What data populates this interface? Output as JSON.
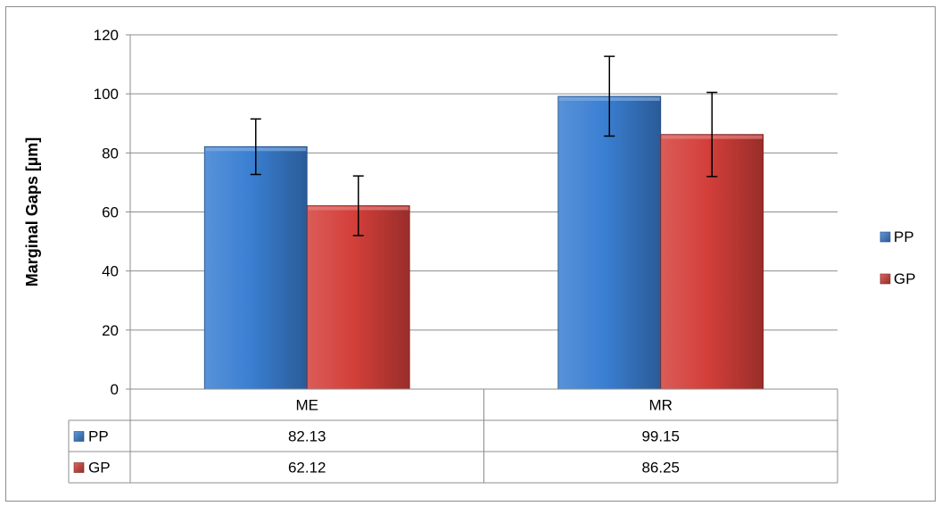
{
  "chart_data": {
    "type": "bar",
    "title": "",
    "xlabel": "",
    "ylabel": "Marginal Gaps [µm]",
    "ylim": [
      0,
      120
    ],
    "yticks": [
      0,
      20,
      40,
      60,
      80,
      100,
      120
    ],
    "categories": [
      "ME",
      "MR"
    ],
    "grid": true,
    "legend_position": "right",
    "data_table": true,
    "series": [
      {
        "name": "PP",
        "color": "#3a7fd2",
        "values": [
          82.13,
          99.15
        ],
        "value_labels": [
          "82.13",
          "99.15"
        ],
        "error_low": [
          72.7,
          85.7
        ],
        "error_high": [
          91.5,
          112.7
        ]
      },
      {
        "name": "GP",
        "color": "#d43f3a",
        "values": [
          62.12,
          86.25
        ],
        "value_labels": [
          "62.12",
          "86.25"
        ],
        "error_low": [
          52.0,
          72.0
        ],
        "error_high": [
          72.2,
          100.5
        ]
      }
    ]
  }
}
